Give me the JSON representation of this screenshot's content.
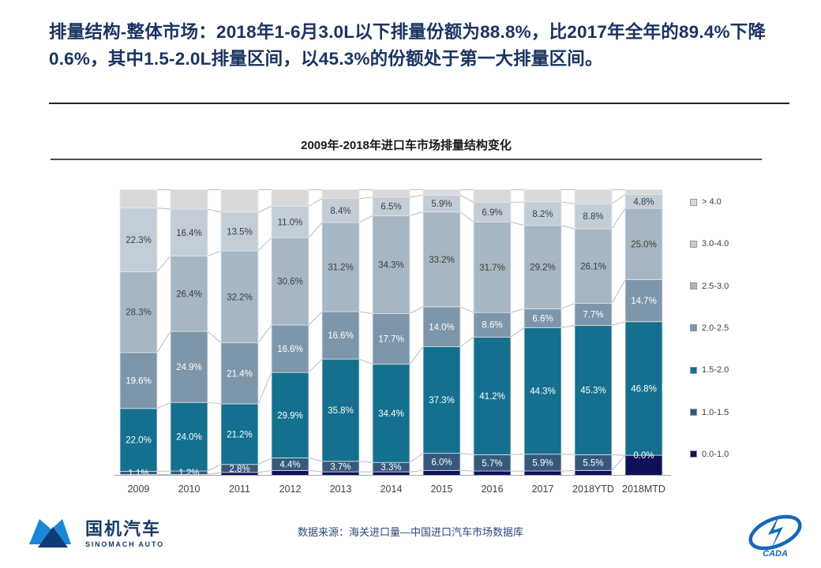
{
  "slide": {
    "title": "排量结构-整体市场：2018年1-6月3.0L以下排量份额为88.8%，比2017年全年的89.4%下降0.6%，其中1.5-2.0L排量区间，以45.3%的份额处于第一大排量区间。",
    "footer_source": "数据来源：海关进口量—中国进口汽车市场数据库"
  },
  "logos": {
    "sinomach": {
      "cn": "国机汽车",
      "en": "SINOMACH AUTO"
    },
    "cada": {
      "text": "CADA"
    }
  },
  "chart_data": {
    "type": "bar",
    "stacked": true,
    "title": "2009年-2018年进口车市场排量结构变化",
    "categories": [
      "2009",
      "2010",
      "2011",
      "2012",
      "2013",
      "2014",
      "2015",
      "2016",
      "2017",
      "2018YTD",
      "2018MTD"
    ],
    "unit": "%",
    "ylim": [
      0,
      100
    ],
    "grid": false,
    "legend_position": "right",
    "legend_order_top_to_bottom": [
      "> 4.0",
      "3.0-4.0",
      "2.5-3.0",
      "2.0-2.5",
      "1.5-2.0",
      "1.0-1.5",
      "0.0-1.0"
    ],
    "series": [
      {
        "name": "0.0-1.0",
        "color": "#0D1157",
        "show_labels": false,
        "values_estimated": true,
        "values": [
          0.3,
          0.3,
          1.0,
          1.7,
          1.2,
          1.2,
          1.7,
          1.5,
          1.5,
          1.7,
          7.0
        ]
      },
      {
        "name": "1.0-1.5",
        "color": "#35597C",
        "show_labels": true,
        "label_color": "#ffffff",
        "values": [
          1.1,
          1.2,
          2.8,
          4.4,
          3.7,
          3.3,
          6.0,
          5.7,
          5.9,
          5.5,
          0.0
        ]
      },
      {
        "name": "1.5-2.0",
        "color": "#14708E",
        "show_labels": true,
        "label_color": "#ffffff",
        "values": [
          22.0,
          24.0,
          21.2,
          29.9,
          35.8,
          34.4,
          37.3,
          41.2,
          44.3,
          45.3,
          46.8
        ]
      },
      {
        "name": "2.0-2.5",
        "color": "#7E96A9",
        "show_labels": true,
        "label_color": "#ffffff",
        "values": [
          19.6,
          24.9,
          21.4,
          16.6,
          16.6,
          17.7,
          14.0,
          8.6,
          6.6,
          7.7,
          14.7
        ]
      },
      {
        "name": "2.5-3.0",
        "color": "#A6B6C3",
        "show_labels": true,
        "label_color": "#404040",
        "values": [
          28.3,
          26.4,
          32.2,
          30.6,
          31.2,
          34.3,
          33.2,
          31.7,
          29.2,
          26.1,
          25.0
        ]
      },
      {
        "name": "3.0-4.0",
        "color": "#C2CDD7",
        "show_labels": true,
        "label_color": "#404040",
        "values": [
          22.3,
          16.4,
          13.5,
          11.0,
          8.4,
          6.5,
          5.9,
          6.9,
          8.2,
          8.8,
          4.8
        ]
      },
      {
        "name": "> 4.0",
        "color": "#D9D9D9",
        "show_labels": false,
        "values_estimated": true,
        "values": [
          6.4,
          6.8,
          7.9,
          5.8,
          3.1,
          2.6,
          1.9,
          4.4,
          4.3,
          4.9,
          1.7
        ]
      }
    ]
  }
}
